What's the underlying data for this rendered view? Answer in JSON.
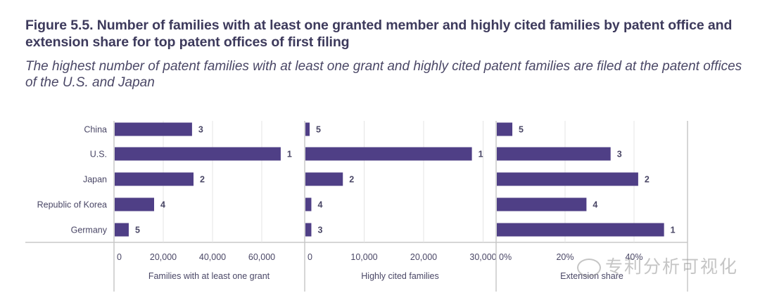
{
  "title": "Figure 5.5. Number of families with at least one granted member and highly cited families by patent office and extension share for top patent offices of first filing",
  "subtitle": "The highest number of patent families with at least one grant and highly cited patent families are filed at the patent offices of the U.S. and Japan",
  "watermark": "专利分析可视化",
  "colors": {
    "bar": "#4f3f86",
    "grid": "#e4e4e4",
    "axis": "#c8c8c8",
    "text": "#4a4766"
  },
  "chart_data": [
    {
      "type": "bar",
      "orientation": "horizontal",
      "categories": [
        "China",
        "U.S.",
        "Japan",
        "Republic of Korea",
        "Germany"
      ],
      "values": [
        31400,
        67400,
        32000,
        16000,
        5700
      ],
      "rank_labels": [
        "3",
        "1",
        "2",
        "4",
        "5"
      ],
      "xlabel": "Families with at least one grant",
      "xticks": [
        0,
        20000,
        40000,
        60000
      ],
      "xtick_labels": [
        "0",
        "20,000",
        "40,000",
        "60,000"
      ],
      "xlim": [
        0,
        72000
      ],
      "grid": true
    },
    {
      "type": "bar",
      "orientation": "horizontal",
      "categories": [
        "China",
        "U.S.",
        "Japan",
        "Republic of Korea",
        "Germany"
      ],
      "values": [
        700,
        28000,
        6300,
        1000,
        1000
      ],
      "rank_labels": [
        "5",
        "1",
        "2",
        "4",
        "3"
      ],
      "xlabel": "Highly cited families",
      "xticks": [
        0,
        10000,
        20000,
        30000
      ],
      "xtick_labels": [
        "0",
        "10,000",
        "20,000",
        "30,000"
      ],
      "xlim": [
        0,
        32000
      ],
      "grid": true
    },
    {
      "type": "bar",
      "orientation": "horizontal",
      "categories": [
        "China",
        "U.S.",
        "Japan",
        "Republic of Korea",
        "Germany"
      ],
      "values": [
        4.5,
        33,
        41,
        26,
        48.5
      ],
      "rank_labels": [
        "5",
        "3",
        "2",
        "4",
        "1"
      ],
      "xlabel": "Extension share",
      "xticks": [
        0,
        20,
        40
      ],
      "xtick_labels": [
        "0%",
        "20%",
        "40%"
      ],
      "xlim": [
        0,
        55
      ],
      "unit": "%",
      "grid": true
    }
  ]
}
